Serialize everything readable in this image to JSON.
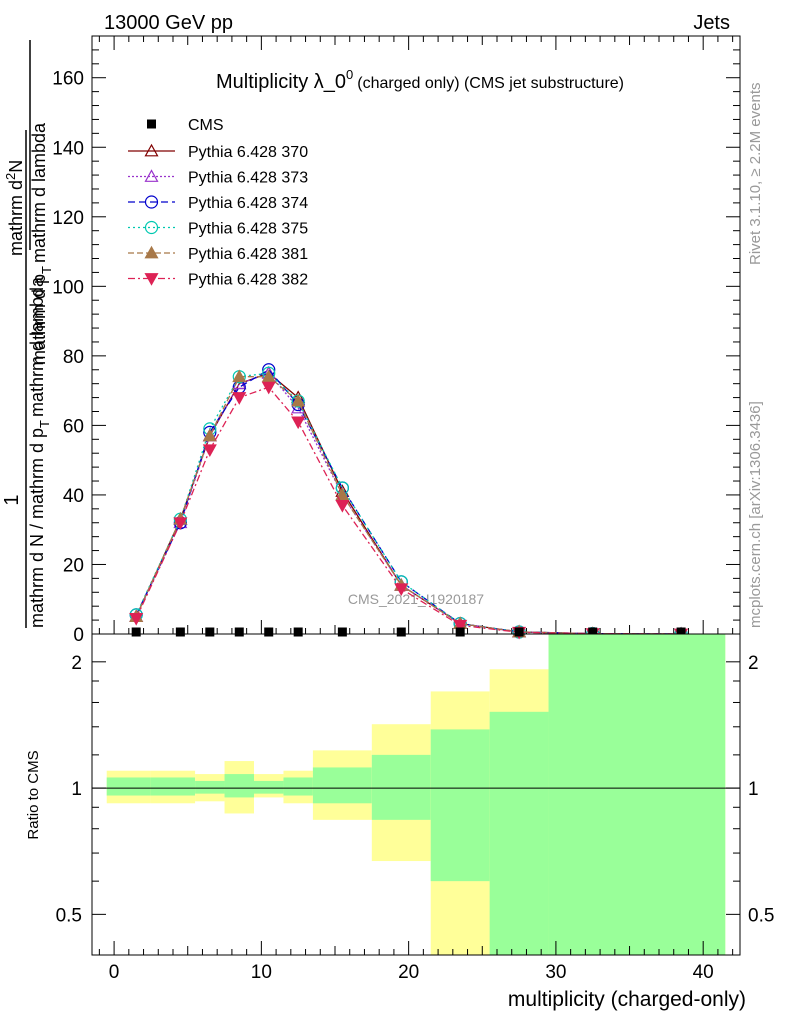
{
  "header": {
    "left": "13000 GeV pp",
    "right": "Jets"
  },
  "side": {
    "rivet": "Rivet 3.1.10, ≥ 2.2M events",
    "mcplots": "mcplots.cern.ch [arXiv:1306.3436]"
  },
  "chart_data": [
    {
      "type": "line",
      "title_main": "Multiplicity λ_0",
      "title_sup": "0",
      "title_sub": "(charged only) (CMS jet substructure)",
      "watermark": "CMS_2021_I1920187",
      "ylabel_num": "1",
      "ylabel_den": "mathrm d N / mathrm d p",
      "ylabel_den_sub": "T",
      "ylabel_den_tail": "mathrm d lambda",
      "ylabel_right_num": "mathrm d",
      "ylabel_right_sup": "2",
      "ylabel_right_num_tail": "N",
      "ylabel_right_den": "mathrm d p",
      "ylabel_right_den_sub": "T",
      "ylabel_right_den_tail": "mathrm d lambda",
      "xlim": [
        -1.5,
        42.5
      ],
      "ylim": [
        0,
        172
      ],
      "y_ticks": [
        0,
        20,
        40,
        60,
        80,
        100,
        120,
        140,
        160
      ],
      "x": [
        1.5,
        4.5,
        6.5,
        8.5,
        10.5,
        12.5,
        15.5,
        19.5,
        23.5,
        27.5,
        32.5,
        38.5
      ],
      "cms": {
        "name": "CMS",
        "color": "#000000",
        "values": [
          0.2,
          0.2,
          0.2,
          0.2,
          0.2,
          0.2,
          0.2,
          0.2,
          0.2,
          0.2,
          0.2,
          0.2
        ]
      },
      "series": [
        {
          "name": "Pythia 6.428 370",
          "color": "#800000",
          "dash": "",
          "marker": "triangle-open",
          "values": [
            5,
            33,
            57,
            72,
            75,
            68,
            41,
            14,
            3,
            0.6,
            0.1,
            0
          ]
        },
        {
          "name": "Pythia 6.428 373",
          "color": "#9933cc",
          "dash": "2,2",
          "marker": "triangle-open",
          "values": [
            5,
            32,
            57,
            72,
            75,
            65,
            40,
            14,
            3,
            0.6,
            0.1,
            0
          ]
        },
        {
          "name": "Pythia 6.428 374",
          "color": "#0000cc",
          "dash": "7,4",
          "marker": "circle-open",
          "values": [
            5.5,
            32,
            58,
            71,
            76,
            66,
            42,
            15,
            3,
            0.6,
            0.1,
            0
          ]
        },
        {
          "name": "Pythia 6.428 375",
          "color": "#00c8b0",
          "dash": "2,3",
          "marker": "circle-open",
          "values": [
            5.5,
            33,
            59,
            74,
            75,
            67,
            42,
            15,
            3,
            0.6,
            0.1,
            0
          ]
        },
        {
          "name": "Pythia 6.428 381",
          "color": "#a87848",
          "dash": "6,3",
          "marker": "triangle-filled",
          "values": [
            5,
            33,
            57,
            74,
            74,
            67,
            40,
            14,
            3,
            0.6,
            0.1,
            0
          ]
        },
        {
          "name": "Pythia 6.428 382",
          "color": "#dd2255",
          "dash": "7,3,2,3",
          "marker": "triangle-down-filled",
          "values": [
            4.5,
            32,
            53,
            68,
            71,
            61,
            37,
            13,
            2.5,
            0.5,
            0.1,
            0
          ]
        }
      ]
    },
    {
      "type": "area",
      "ylabel": "Ratio to CMS",
      "xlabel": "multiplicity (charged-only)",
      "log_scale_y": true,
      "ylim": [
        0.4,
        2.33
      ],
      "y_ticks": [
        0.5,
        1,
        2
      ],
      "x_ticks": [
        0,
        10,
        20,
        30,
        40
      ],
      "reference_line": 1,
      "inner_band_color": "#99ff99",
      "outer_band_color": "#ffff99",
      "bins": [
        {
          "lo": -0.5,
          "hi": 2.5,
          "outer": [
            0.92,
            1.1
          ],
          "inner": [
            0.96,
            1.06
          ]
        },
        {
          "lo": 2.5,
          "hi": 5.5,
          "outer": [
            0.92,
            1.1
          ],
          "inner": [
            0.96,
            1.06
          ]
        },
        {
          "lo": 5.5,
          "hi": 7.5,
          "outer": [
            0.93,
            1.08
          ],
          "inner": [
            0.97,
            1.04
          ]
        },
        {
          "lo": 7.5,
          "hi": 9.5,
          "outer": [
            0.87,
            1.16
          ],
          "inner": [
            0.95,
            1.08
          ]
        },
        {
          "lo": 9.5,
          "hi": 11.5,
          "outer": [
            0.95,
            1.08
          ],
          "inner": [
            0.97,
            1.04
          ]
        },
        {
          "lo": 11.5,
          "hi": 13.5,
          "outer": [
            0.92,
            1.1
          ],
          "inner": [
            0.96,
            1.06
          ]
        },
        {
          "lo": 13.5,
          "hi": 17.5,
          "outer": [
            0.84,
            1.23
          ],
          "inner": [
            0.92,
            1.12
          ]
        },
        {
          "lo": 17.5,
          "hi": 21.5,
          "outer": [
            0.67,
            1.42
          ],
          "inner": [
            0.84,
            1.2
          ]
        },
        {
          "lo": 21.5,
          "hi": 25.5,
          "outer": [
            0.4,
            1.7
          ],
          "inner": [
            0.6,
            1.38
          ]
        },
        {
          "lo": 25.5,
          "hi": 29.5,
          "outer": [
            0.4,
            1.92
          ],
          "inner": [
            0.4,
            1.52
          ]
        },
        {
          "lo": 29.5,
          "hi": 41.5,
          "outer": [
            0.4,
            2.33
          ],
          "inner": [
            0.4,
            2.33
          ]
        }
      ]
    }
  ]
}
